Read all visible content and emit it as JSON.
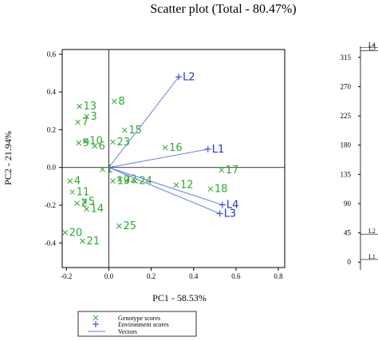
{
  "chart_data": [
    {
      "type": "biplot",
      "title": "Scatter plot (Total - 80.47%)",
      "xlabel": "PC1 - 58.53%",
      "ylabel": "PC2 - 21.94%",
      "xlim": [
        -0.22,
        0.83
      ],
      "ylim": [
        -0.53,
        0.625
      ],
      "xticks": [
        -0.2,
        {
          "value": 0,
          "label": "0.0"
        },
        0.2,
        0.4,
        0.6,
        0.8
      ],
      "yticks": [
        0.6,
        0.4,
        0.2,
        {
          "value": 0,
          "label": "0.0"
        },
        -0.2,
        -0.4
      ],
      "series": [
        {
          "name": "Genotype scores",
          "color": "#2ea82e",
          "marker": "x",
          "labels": [
            "13",
            "8",
            "7",
            "3",
            "15",
            "9",
            "10",
            "6",
            "23",
            "16",
            "1",
            "17",
            "4",
            "19",
            "22",
            "24",
            "12",
            "18",
            "11",
            "2",
            "5",
            "14",
            "25",
            "20",
            "21"
          ],
          "x": [
            -0.139,
            0.026,
            -0.146,
            -0.105,
            0.075,
            -0.142,
            -0.11,
            -0.067,
            0.019,
            0.266,
            -0.03,
            0.532,
            -0.183,
            0.019,
            0.052,
            0.124,
            0.318,
            0.48,
            -0.172,
            -0.15,
            -0.115,
            -0.105,
            0.049,
            -0.206,
            -0.124
          ],
          "y": [
            0.324,
            0.35,
            0.24,
            0.27,
            0.198,
            0.13,
            0.14,
            0.114,
            0.135,
            0.105,
            -0.01,
            -0.013,
            -0.072,
            -0.072,
            -0.063,
            -0.072,
            -0.093,
            -0.114,
            -0.13,
            -0.19,
            -0.18,
            -0.22,
            -0.31,
            -0.345,
            -0.39
          ]
        },
        {
          "name": "Environment scores",
          "color": "#2233cc",
          "marker": "+",
          "vector_name": "Vectors",
          "vector_color": "#6a7fd8",
          "labels": [
            "L2",
            "L1",
            "L4",
            "L3"
          ],
          "x": [
            0.33,
            0.468,
            0.536,
            0.524
          ],
          "y": [
            0.48,
            0.097,
            -0.198,
            -0.244
          ]
        }
      ]
    },
    {
      "type": "strip",
      "categories": [
        "L1",
        "L2",
        "L3",
        "L4"
      ],
      "values": [
        4,
        43,
        325,
        330
      ],
      "ylim": [
        -12,
        332
      ],
      "yticks": [
        0,
        45,
        90,
        135,
        180,
        225,
        270,
        315
      ]
    }
  ]
}
